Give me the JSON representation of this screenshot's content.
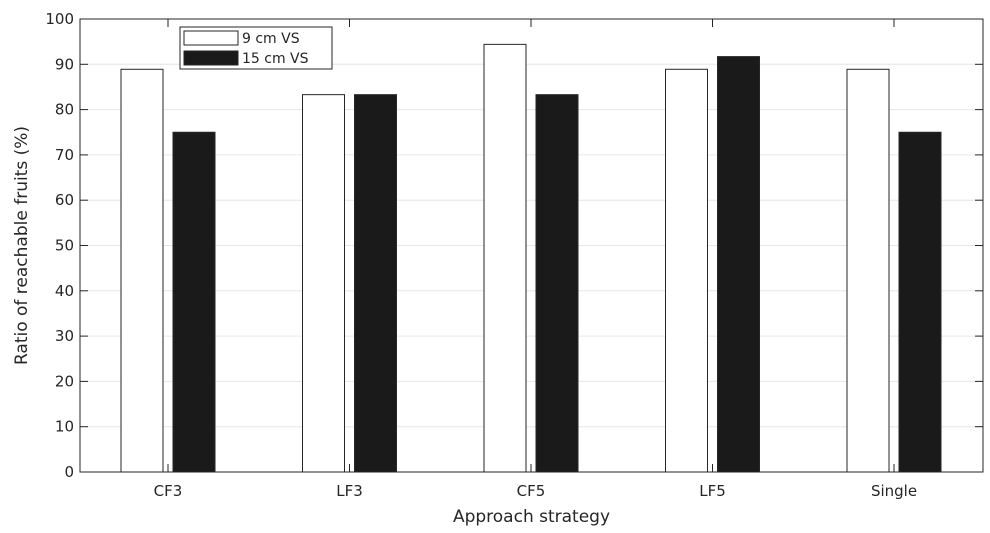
{
  "chart_data": {
    "type": "bar",
    "title": "",
    "xlabel": "Approach strategy",
    "ylabel": "Ratio of reachable fruits (%)",
    "categories": [
      "CF3",
      "LF3",
      "CF5",
      "LF5",
      "Single"
    ],
    "series": [
      {
        "name": "9 cm VS",
        "values": [
          88.9,
          83.3,
          94.4,
          88.9,
          88.9
        ],
        "color": "#ffffff"
      },
      {
        "name": "15 cm VS",
        "values": [
          75.0,
          83.3,
          83.3,
          91.7,
          75.0
        ],
        "color": "#1a1a1a"
      }
    ],
    "ylim": [
      0,
      100
    ],
    "yticks": [
      "0",
      "10",
      "20",
      "30",
      "40",
      "50",
      "60",
      "70",
      "80",
      "90",
      "100"
    ],
    "grid": true,
    "legend_position": "top-left"
  }
}
